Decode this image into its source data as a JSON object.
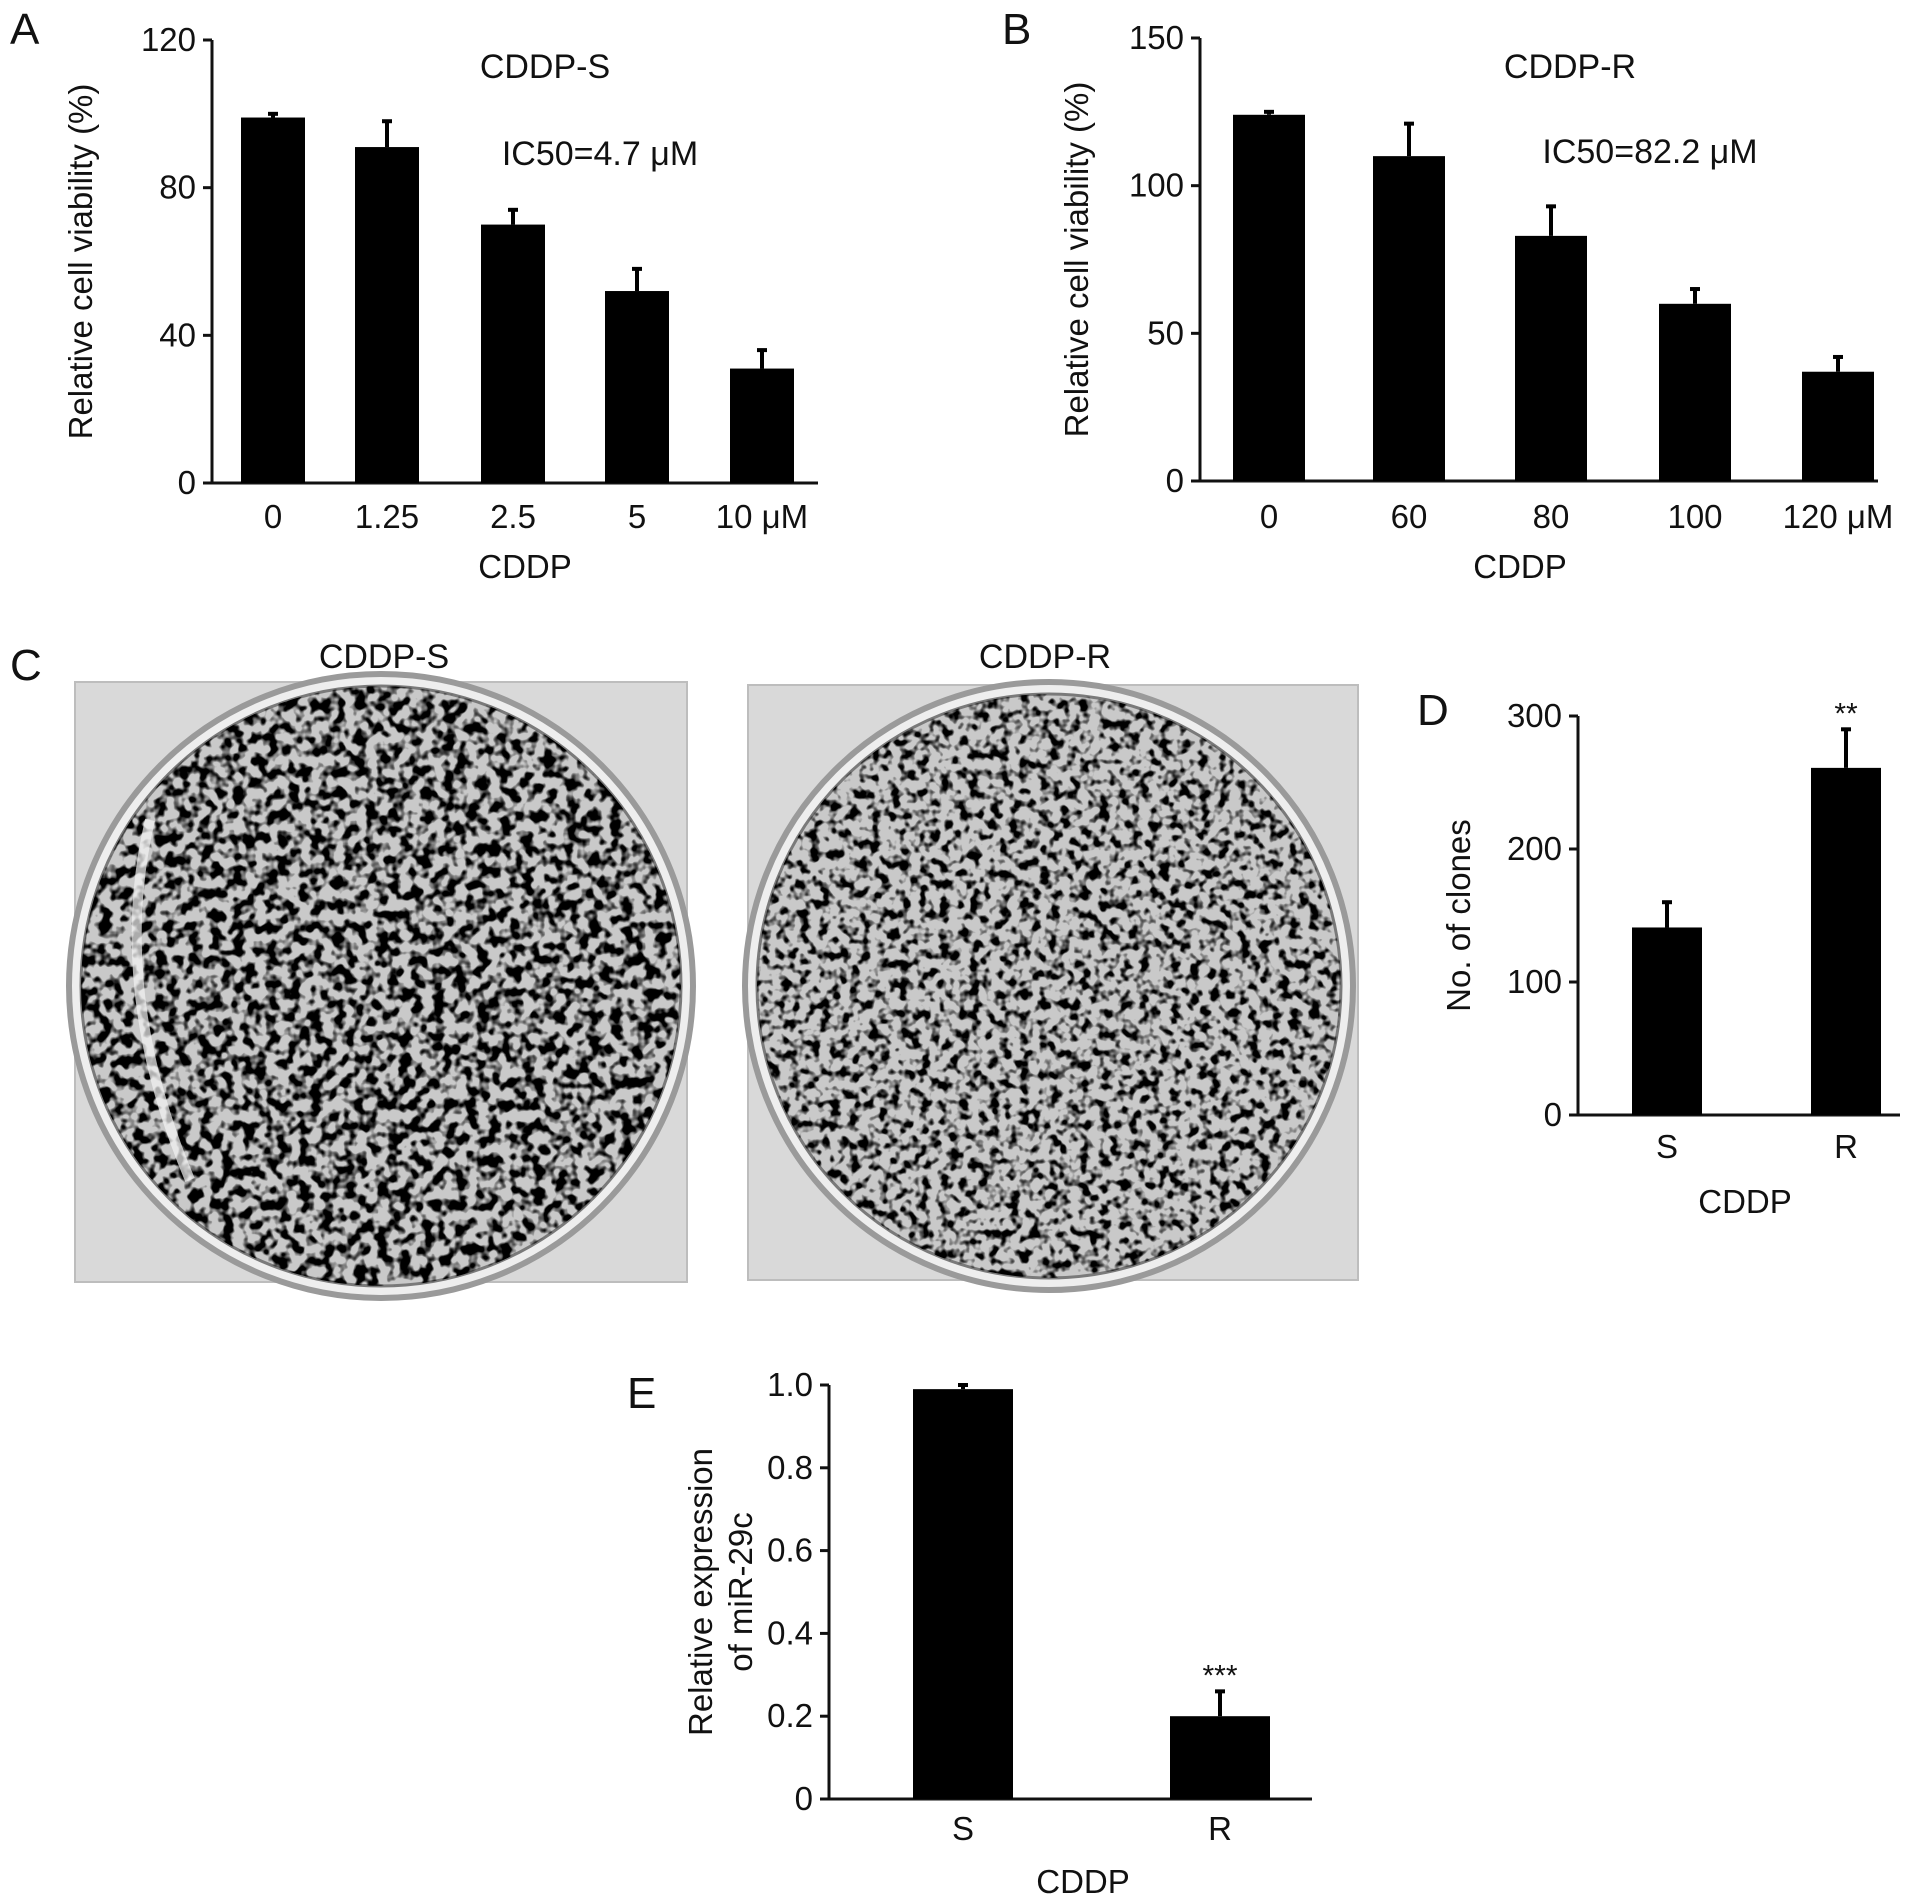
{
  "panels": [
    {
      "letter": "A",
      "title": "CDDP-S",
      "annotation": "IC50=4.7 μM",
      "ylabel": "Relative cell viability (%)",
      "xlabel": "CDDP",
      "categories": [
        "0",
        "1.25",
        "2.5",
        "5",
        "10 μM"
      ],
      "values": [
        99,
        91,
        70,
        52,
        31
      ],
      "errors": [
        1,
        7,
        4,
        6,
        5
      ],
      "sig": [
        "",
        "",
        "",
        "",
        ""
      ],
      "ylim": [
        0,
        120
      ],
      "yticks": [
        0,
        40,
        80,
        120
      ]
    },
    {
      "letter": "B",
      "title": "CDDP-R",
      "annotation": "IC50=82.2 μM",
      "ylabel": "Relative cell viability (%)",
      "xlabel": "CDDP",
      "categories": [
        "0",
        "60",
        "80",
        "100",
        "120 μM"
      ],
      "values": [
        124,
        110,
        83,
        60,
        37
      ],
      "errors": [
        1,
        11,
        10,
        5,
        5
      ],
      "sig": [
        "",
        "",
        "",
        "",
        ""
      ],
      "ylim": [
        0,
        150
      ],
      "yticks": [
        0,
        50,
        100,
        150
      ]
    },
    {
      "letter": "C",
      "image_labels": [
        "CDDP-S",
        "CDDP-R"
      ]
    },
    {
      "letter": "D",
      "title": "",
      "annotation": "",
      "ylabel": "No. of clones",
      "xlabel": "CDDP",
      "categories": [
        "S",
        "R"
      ],
      "values": [
        141,
        261
      ],
      "errors": [
        19,
        29
      ],
      "sig": [
        "",
        "**"
      ],
      "ylim": [
        0,
        300
      ],
      "yticks": [
        0,
        100,
        200,
        300
      ]
    },
    {
      "letter": "E",
      "title": "",
      "annotation": "",
      "ylabel": "Relative expression",
      "ylabel2": "of miR-29c",
      "xlabel": "CDDP",
      "categories": [
        "S",
        "R"
      ],
      "values": [
        0.99,
        0.2
      ],
      "errors": [
        0.01,
        0.06
      ],
      "sig": [
        "",
        "***"
      ],
      "ylim": [
        0,
        1.0
      ],
      "yticks": [
        "0",
        "0.2",
        "0.4",
        "0.6",
        "0.8",
        "1.0"
      ]
    }
  ],
  "chart_data": [
    {
      "type": "bar",
      "title": "CDDP-S",
      "categories": [
        "0",
        "1.25",
        "2.5",
        "5",
        "10 μM"
      ],
      "values": [
        99,
        91,
        70,
        52,
        31
      ],
      "errors": [
        1,
        7,
        4,
        6,
        5
      ],
      "xlabel": "CDDP",
      "ylabel": "Relative cell viability (%)",
      "ylim": [
        0,
        120
      ],
      "annotations": [
        "IC50=4.7 μM"
      ]
    },
    {
      "type": "bar",
      "title": "CDDP-R",
      "categories": [
        "0",
        "60",
        "80",
        "100",
        "120 μM"
      ],
      "values": [
        124,
        110,
        83,
        60,
        37
      ],
      "errors": [
        1,
        11,
        10,
        5,
        5
      ],
      "xlabel": "CDDP",
      "ylabel": "Relative cell viability (%)",
      "ylim": [
        0,
        150
      ],
      "annotations": [
        "IC50=82.2 μM"
      ]
    },
    {
      "type": "bar",
      "categories": [
        "S",
        "R"
      ],
      "values": [
        141,
        261
      ],
      "errors": [
        19,
        29
      ],
      "xlabel": "CDDP",
      "ylabel": "No. of clones",
      "ylim": [
        0,
        300
      ],
      "annotations": [
        "**"
      ]
    },
    {
      "type": "bar",
      "categories": [
        "S",
        "R"
      ],
      "values": [
        0.99,
        0.2
      ],
      "errors": [
        0.01,
        0.06
      ],
      "xlabel": "CDDP",
      "ylabel": "Relative expression of miR-29c",
      "ylim": [
        0,
        1.0
      ],
      "annotations": [
        "***"
      ]
    }
  ]
}
